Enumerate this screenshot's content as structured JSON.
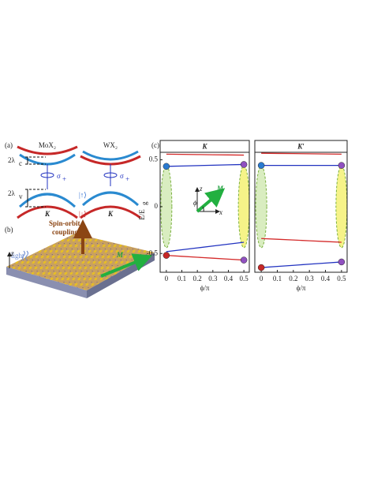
{
  "panel_a": {
    "label": "(a)",
    "left_material": "MoX₂",
    "right_material": "WX₂",
    "lambda_c": "2λ",
    "lambda_c_sub": "c",
    "lambda_v": "2λ",
    "lambda_v_sub": "v",
    "sigma": "σ",
    "sigma_sub": "+",
    "spin_up": "|↑⟩",
    "spin_down": "|↓⟩",
    "valley": "K"
  },
  "panel_b": {
    "label": "(b)",
    "soc_line1": "Spin-orbit",
    "soc_line2": "coupling",
    "light": "light",
    "z": "z",
    "m": "M"
  },
  "panel_c": {
    "label": "(c)",
    "inset_z": "z",
    "inset_m": "M",
    "inset_phi": "ϕ",
    "inset_x": "x"
  },
  "chart_data": [
    {
      "type": "line",
      "title": "K",
      "xlabel": "ϕ/π",
      "ylabel": "E/E",
      "ylabel_sub": "g",
      "x": [
        0,
        0.1,
        0.2,
        0.3,
        0.4,
        0.5
      ],
      "series": [
        {
          "color": "#d42a2a",
          "values": [
            0.56,
            0.558,
            0.556,
            0.554,
            0.552,
            0.55
          ]
        },
        {
          "color": "#2233c0",
          "values": [
            0.43,
            0.434,
            0.438,
            0.442,
            0.446,
            0.45
          ]
        },
        {
          "color": "#2233c0",
          "values": [
            -0.48,
            -0.46,
            -0.44,
            -0.42,
            -0.4,
            -0.38
          ]
        },
        {
          "color": "#d42a2a",
          "values": [
            -0.52,
            -0.53,
            -0.54,
            -0.55,
            -0.56,
            -0.57
          ]
        }
      ],
      "xlim": [
        -0.04,
        0.535
      ],
      "ylim": [
        -0.7,
        0.58
      ],
      "xticks": [
        0,
        0.1,
        0.2,
        0.3,
        0.4,
        0.5
      ],
      "yticks": [
        0.5,
        0,
        -0.5
      ]
    },
    {
      "type": "line",
      "title": "K′",
      "xlabel": "ϕ/π",
      "x": [
        0,
        0.1,
        0.2,
        0.3,
        0.4,
        0.5
      ],
      "series": [
        {
          "color": "#d42a2a",
          "values": [
            0.57,
            0.568,
            0.566,
            0.564,
            0.562,
            0.56
          ]
        },
        {
          "color": "#2233c0",
          "values": [
            0.44,
            0.44,
            0.44,
            0.44,
            0.44,
            0.44
          ]
        },
        {
          "color": "#d42a2a",
          "values": [
            -0.34,
            -0.348,
            -0.356,
            -0.364,
            -0.372,
            -0.38
          ]
        },
        {
          "color": "#2233c0",
          "values": [
            -0.65,
            -0.638,
            -0.626,
            -0.614,
            -0.602,
            -0.59
          ]
        }
      ],
      "xlim": [
        -0.04,
        0.535
      ],
      "ylim": [
        -0.7,
        0.58
      ],
      "xticks": [
        0,
        0.1,
        0.2,
        0.3,
        0.4,
        0.5
      ]
    }
  ]
}
